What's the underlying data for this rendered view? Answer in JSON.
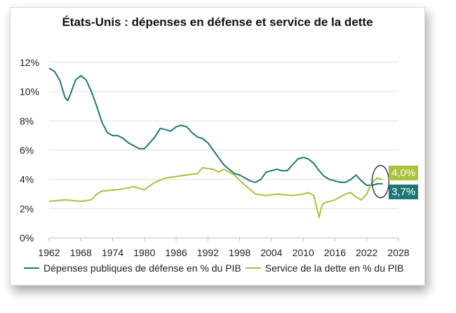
{
  "chart_data": {
    "type": "line",
    "title": "États-Unis : dépenses en défense et service de la dette",
    "xlim": [
      1962,
      2028
    ],
    "ylim": [
      0,
      12
    ],
    "x_ticks": [
      "1962",
      "1968",
      "1974",
      "1980",
      "1986",
      "1992",
      "1998",
      "2004",
      "2010",
      "2016",
      "2022",
      "2028"
    ],
    "y_ticks": [
      "0%",
      "2%",
      "4%",
      "6%",
      "8%",
      "10%",
      "12%"
    ],
    "grid": "horizontal",
    "legend_placement": "bottom",
    "series": [
      {
        "name": "Dépenses publiques de défense en % du PIB",
        "color": "#1f7775",
        "end_label": "3,7%",
        "x": [
          1962,
          1963,
          1964,
          1965,
          1965.5,
          1966,
          1967,
          1968,
          1969,
          1970,
          1971,
          1972,
          1973,
          1974,
          1975,
          1976,
          1977,
          1978,
          1979,
          1980,
          1981,
          1982,
          1983,
          1984,
          1985,
          1986,
          1987,
          1988,
          1989,
          1990,
          1991,
          1992,
          1993,
          1994,
          1995,
          1996,
          1997,
          1998,
          1999,
          2000,
          2001,
          2002,
          2003,
          2004,
          2005,
          2006,
          2007,
          2008,
          2009,
          2010,
          2011,
          2012,
          2013,
          2014,
          2015,
          2016,
          2017,
          2018,
          2019,
          2020,
          2021,
          2022,
          2023,
          2024,
          2025
        ],
        "y": [
          11.6,
          11.4,
          10.8,
          9.6,
          9.4,
          9.8,
          10.8,
          11.1,
          10.8,
          10.0,
          9.0,
          7.9,
          7.2,
          7.0,
          7.0,
          6.8,
          6.5,
          6.3,
          6.1,
          6.1,
          6.5,
          6.9,
          7.5,
          7.4,
          7.3,
          7.6,
          7.7,
          7.6,
          7.2,
          6.9,
          6.8,
          6.5,
          6.0,
          5.5,
          5.0,
          4.7,
          4.4,
          4.3,
          4.1,
          3.9,
          3.8,
          4.0,
          4.5,
          4.6,
          4.7,
          4.6,
          4.6,
          5.0,
          5.4,
          5.5,
          5.4,
          5.1,
          4.6,
          4.2,
          4.0,
          3.9,
          3.8,
          3.8,
          4.0,
          4.3,
          3.9,
          3.6,
          3.6,
          3.7,
          3.7
        ]
      },
      {
        "name": "Service de la dette en % du PIB",
        "color": "#a8c23c",
        "end_label": "4,0%",
        "x": [
          1962,
          1965,
          1968,
          1970,
          1971,
          1972,
          1975,
          1978,
          1980,
          1982,
          1984,
          1986,
          1988,
          1990,
          1991,
          1993,
          1994,
          1995,
          1997,
          1999,
          2001,
          2003,
          2005,
          2008,
          2010,
          2011,
          2012,
          2013,
          2013.5,
          2014,
          2016,
          2018,
          2019,
          2020,
          2021,
          2022,
          2023,
          2024,
          2025
        ],
        "y": [
          2.5,
          2.6,
          2.5,
          2.6,
          3.0,
          3.2,
          3.3,
          3.5,
          3.3,
          3.8,
          4.1,
          4.2,
          4.3,
          4.4,
          4.8,
          4.7,
          4.5,
          4.7,
          4.3,
          3.6,
          3.0,
          2.9,
          3.0,
          2.9,
          3.0,
          3.1,
          2.9,
          1.4,
          2.2,
          2.4,
          2.6,
          3.0,
          3.1,
          2.8,
          2.6,
          3.0,
          3.8,
          4.1,
          4.0
        ]
      }
    ]
  }
}
